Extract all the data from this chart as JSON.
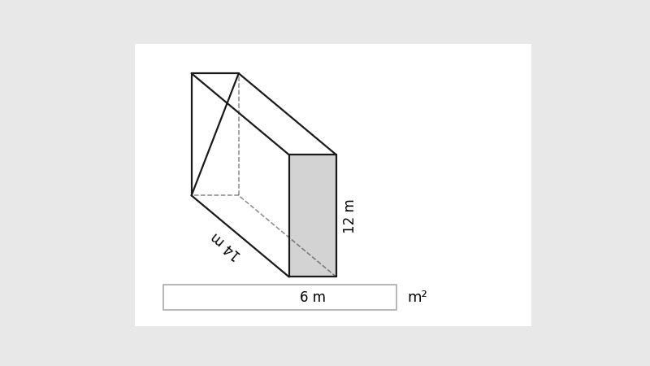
{
  "label_length": "14 m",
  "label_width": "6 m",
  "label_height": "12 m",
  "label_answer": "m²",
  "face_top_color": "#ffffff",
  "face_left_color": "#ffffff",
  "face_right_color": "#d3d3d3",
  "edge_color": "#1a1a1a",
  "edge_linewidth": 1.6,
  "bg_color": "#ffffff",
  "box_fill": "#ffffff",
  "box_edge": "#aaaaaa",
  "font_size_labels": 12,
  "font_size_answer": 13,
  "page_bg": "#e8e8e8"
}
